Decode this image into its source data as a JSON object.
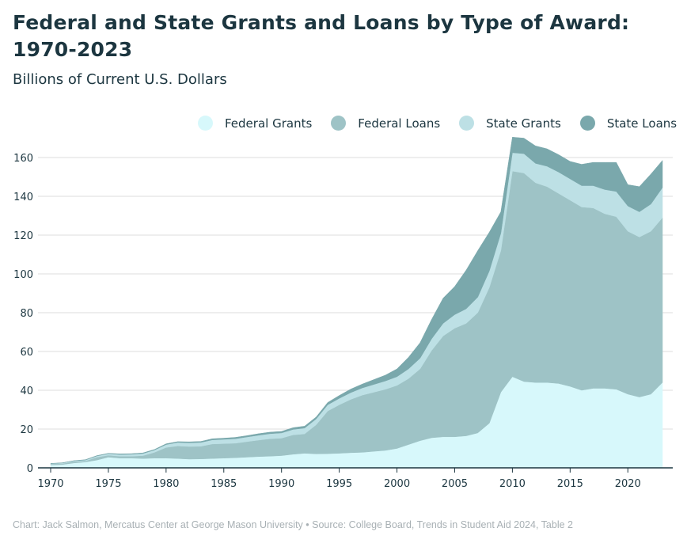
{
  "header": {
    "title": "Federal and State Grants and Loans by Type of Award: 1970-2023",
    "subtitle": "Billions of Current U.S. Dollars"
  },
  "footer": {
    "credit": "Chart: Jack Salmon, Mercatus Center at George Mason University • Source: College Board, Trends in Student Aid 2024, Table 2"
  },
  "colors": {
    "federal_grants": "#d7f8fb",
    "federal_loans": "#9ec3c6",
    "state_grants": "#bde0e5",
    "state_loans": "#7aa8ac",
    "gridline": "#dddddd",
    "axis": "#1c3640"
  },
  "chart_data": {
    "type": "area",
    "stacked": true,
    "title": "Federal and State Grants and Loans by Type of Award: 1970-2023",
    "subtitle": "Billions of Current U.S. Dollars",
    "xlabel": "",
    "ylabel": "",
    "xlim": [
      1970,
      2023
    ],
    "ylim": [
      0,
      170
    ],
    "xticks": [
      1970,
      1975,
      1980,
      1985,
      1990,
      1995,
      2000,
      2005,
      2010,
      2015,
      2020
    ],
    "yticks": [
      0,
      20,
      40,
      60,
      80,
      100,
      120,
      140,
      160
    ],
    "grid": "horizontal",
    "legend_position": "top-right",
    "x": [
      1970,
      1971,
      1972,
      1973,
      1974,
      1975,
      1976,
      1977,
      1978,
      1979,
      1980,
      1981,
      1982,
      1983,
      1984,
      1985,
      1986,
      1987,
      1988,
      1989,
      1990,
      1991,
      1992,
      1993,
      1994,
      1995,
      1996,
      1997,
      1998,
      1999,
      2000,
      2001,
      2002,
      2003,
      2004,
      2005,
      2006,
      2007,
      2008,
      2009,
      2010,
      2011,
      2012,
      2013,
      2014,
      2015,
      2016,
      2017,
      2018,
      2019,
      2020,
      2021,
      2022,
      2023
    ],
    "series": [
      {
        "name": "Federal Grants",
        "values": [
          1.5,
          1.7,
          2.5,
          3,
          4,
          5.5,
          5,
          5,
          4.8,
          5,
          5,
          4.8,
          4.5,
          4.6,
          4.8,
          5,
          5.2,
          5.5,
          5.8,
          6,
          6.3,
          7,
          7.5,
          7.2,
          7.3,
          7.5,
          7.8,
          8,
          8.5,
          9,
          10,
          12,
          14,
          15.5,
          16,
          16,
          16.5,
          18,
          23,
          39,
          47,
          44.5,
          44,
          44,
          43.5,
          42,
          40,
          41,
          41,
          40.5,
          38,
          36.5,
          38,
          44
        ]
      },
      {
        "name": "Federal Loans",
        "values": [
          0.5,
          0.5,
          0.7,
          0.5,
          1.5,
          1,
          1,
          1,
          1.5,
          3,
          5.5,
          6.5,
          6.5,
          6.5,
          7.5,
          7.5,
          7.5,
          8,
          8.5,
          9,
          9,
          10,
          10,
          15,
          22,
          25,
          27.5,
          29.5,
          30.5,
          31.5,
          32.5,
          34,
          37,
          45,
          52,
          56,
          58,
          62,
          70,
          73,
          106,
          107.5,
          103,
          101,
          98,
          96,
          94.5,
          93,
          90,
          89,
          84,
          82.5,
          84,
          85
        ]
      },
      {
        "name": "State Grants",
        "values": [
          0.2,
          0.3,
          0.4,
          0.5,
          0.6,
          0.8,
          0.9,
          1,
          1.1,
          1.2,
          1.5,
          1.8,
          1.9,
          2,
          2.1,
          2.2,
          2.3,
          2.4,
          2.5,
          2.6,
          2.7,
          2.8,
          3,
          3,
          3.2,
          3.3,
          3.5,
          3.7,
          4,
          4.3,
          4.5,
          5,
          5.5,
          6,
          6.5,
          7,
          7.5,
          8,
          8.5,
          9,
          9.5,
          10,
          10,
          10.5,
          11,
          11,
          11,
          11.5,
          12.5,
          13,
          13,
          13,
          14,
          15.5
        ]
      },
      {
        "name": "State Loans",
        "values": [
          0.1,
          0.1,
          0.1,
          0.2,
          0.2,
          0.2,
          0.3,
          0.3,
          0.3,
          0.3,
          0.4,
          0.4,
          0.5,
          0.5,
          0.6,
          0.6,
          0.7,
          0.7,
          0.8,
          0.8,
          0.8,
          0.9,
          1,
          1,
          1.2,
          1.5,
          1.8,
          2,
          2.5,
          3,
          4,
          6,
          8,
          10,
          13,
          14.5,
          20,
          24,
          20,
          11,
          8,
          8,
          9,
          9,
          9,
          9,
          11,
          12,
          14,
          15,
          11,
          13,
          15.5,
          14
        ]
      }
    ]
  }
}
